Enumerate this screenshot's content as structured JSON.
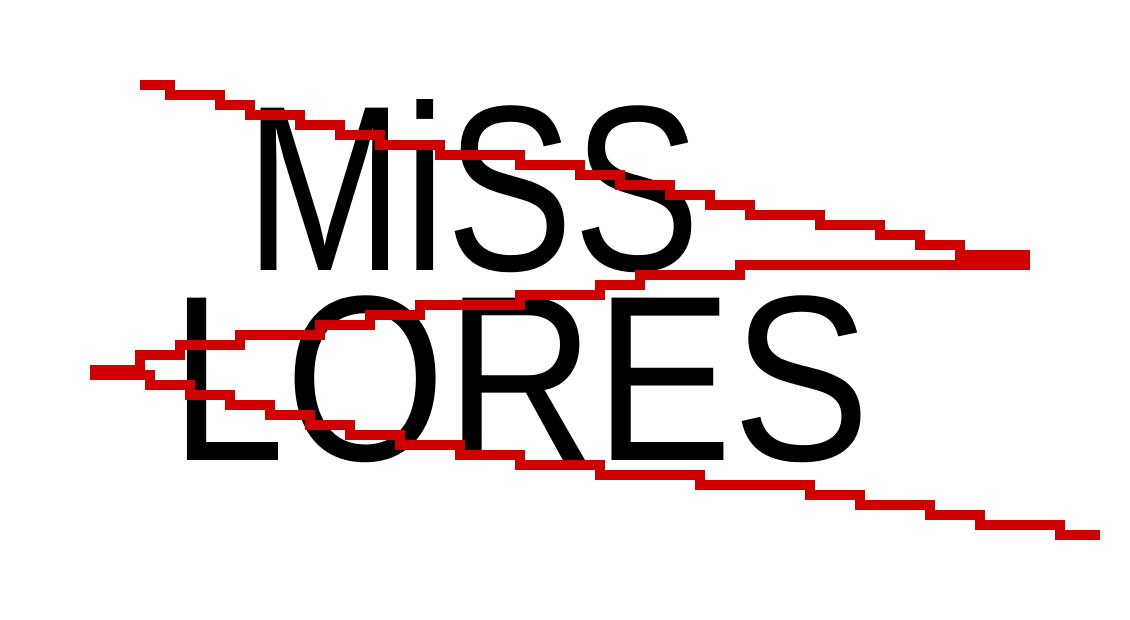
{
  "logo": {
    "line1": "MiSS",
    "line2": "LORES"
  }
}
